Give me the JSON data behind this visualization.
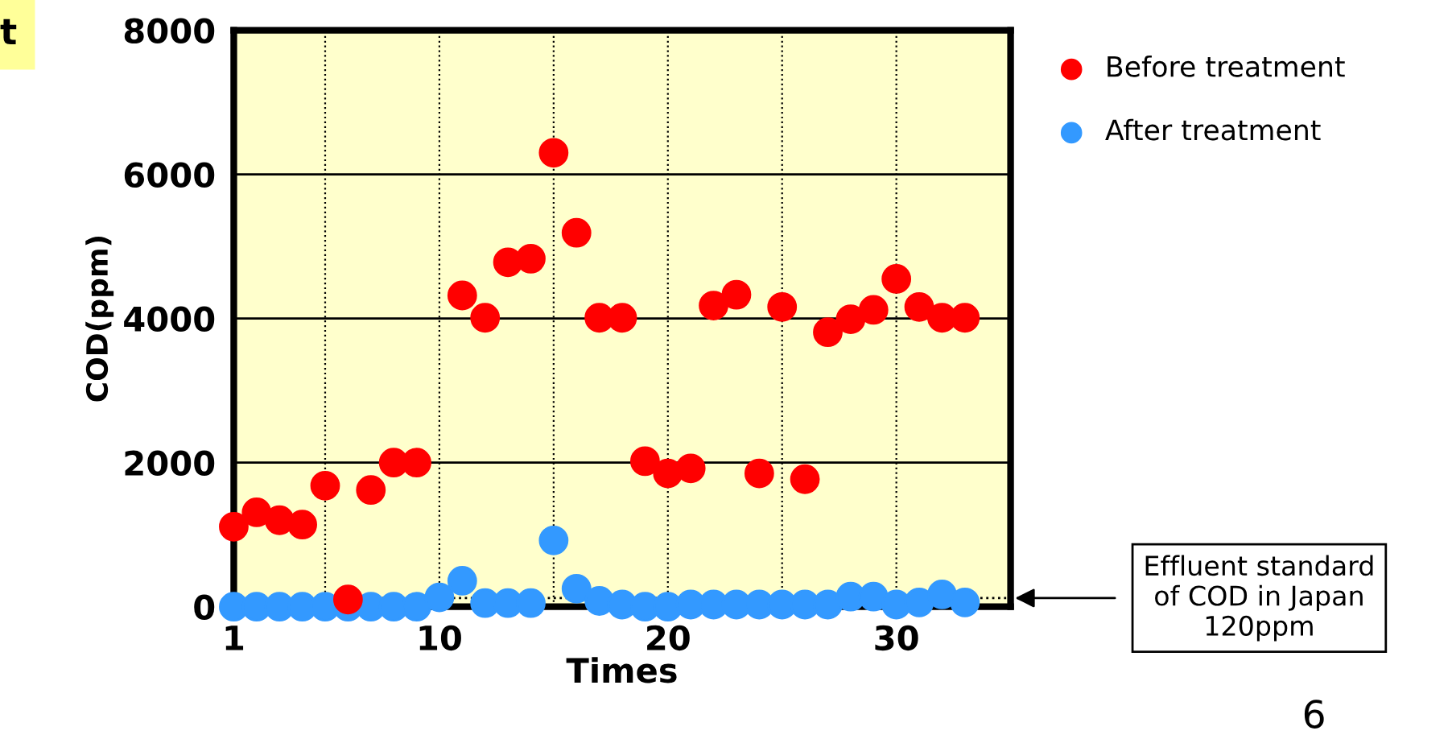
{
  "chart_data": {
    "type": "scatter",
    "xlabel": "Times",
    "ylabel": "COD(ppm)",
    "x": [
      1,
      2,
      3,
      4,
      5,
      6,
      7,
      8,
      9,
      10,
      11,
      12,
      13,
      14,
      15,
      16,
      17,
      18,
      19,
      20,
      21,
      22,
      23,
      24,
      25,
      26,
      27,
      28,
      29,
      30,
      31,
      32,
      33
    ],
    "series": [
      {
        "name": "Before treatment",
        "color": "#ff0000",
        "values": [
          1110,
          1310,
          1200,
          1140,
          1680,
          100,
          1620,
          2000,
          2000,
          null,
          4320,
          4010,
          4780,
          4830,
          6300,
          5190,
          4010,
          4010,
          2020,
          1850,
          1920,
          4180,
          4330,
          1850,
          4160,
          1770,
          3810,
          3990,
          4120,
          4550,
          4160,
          4010,
          4010
        ]
      },
      {
        "name": "After treatment",
        "color": "#3399ff",
        "values": [
          0,
          0,
          0,
          0,
          0,
          0,
          0,
          0,
          0,
          130,
          360,
          50,
          50,
          50,
          920,
          250,
          80,
          30,
          0,
          0,
          30,
          30,
          30,
          30,
          30,
          30,
          30,
          140,
          140,
          30,
          60,
          170,
          60
        ]
      }
    ],
    "xlim": [
      1,
      35
    ],
    "xticks": [
      1,
      {
        "value": 5,
        "label": null
      },
      10,
      {
        "value": 15,
        "label": null
      },
      20,
      {
        "value": 25,
        "label": null
      },
      30
    ],
    "ylim": [
      0,
      8000
    ],
    "yticks": [
      0,
      2000,
      4000,
      6000,
      8000
    ],
    "grid": true,
    "legend": "top right",
    "marker": "circle",
    "ref_lines": [
      {
        "axis": "y",
        "value": 120,
        "label": "Effluent standard\nof COD in Japan\n120ppm",
        "line_style": "dotted"
      }
    ],
    "annotations": [
      "t",
      "6"
    ]
  }
}
